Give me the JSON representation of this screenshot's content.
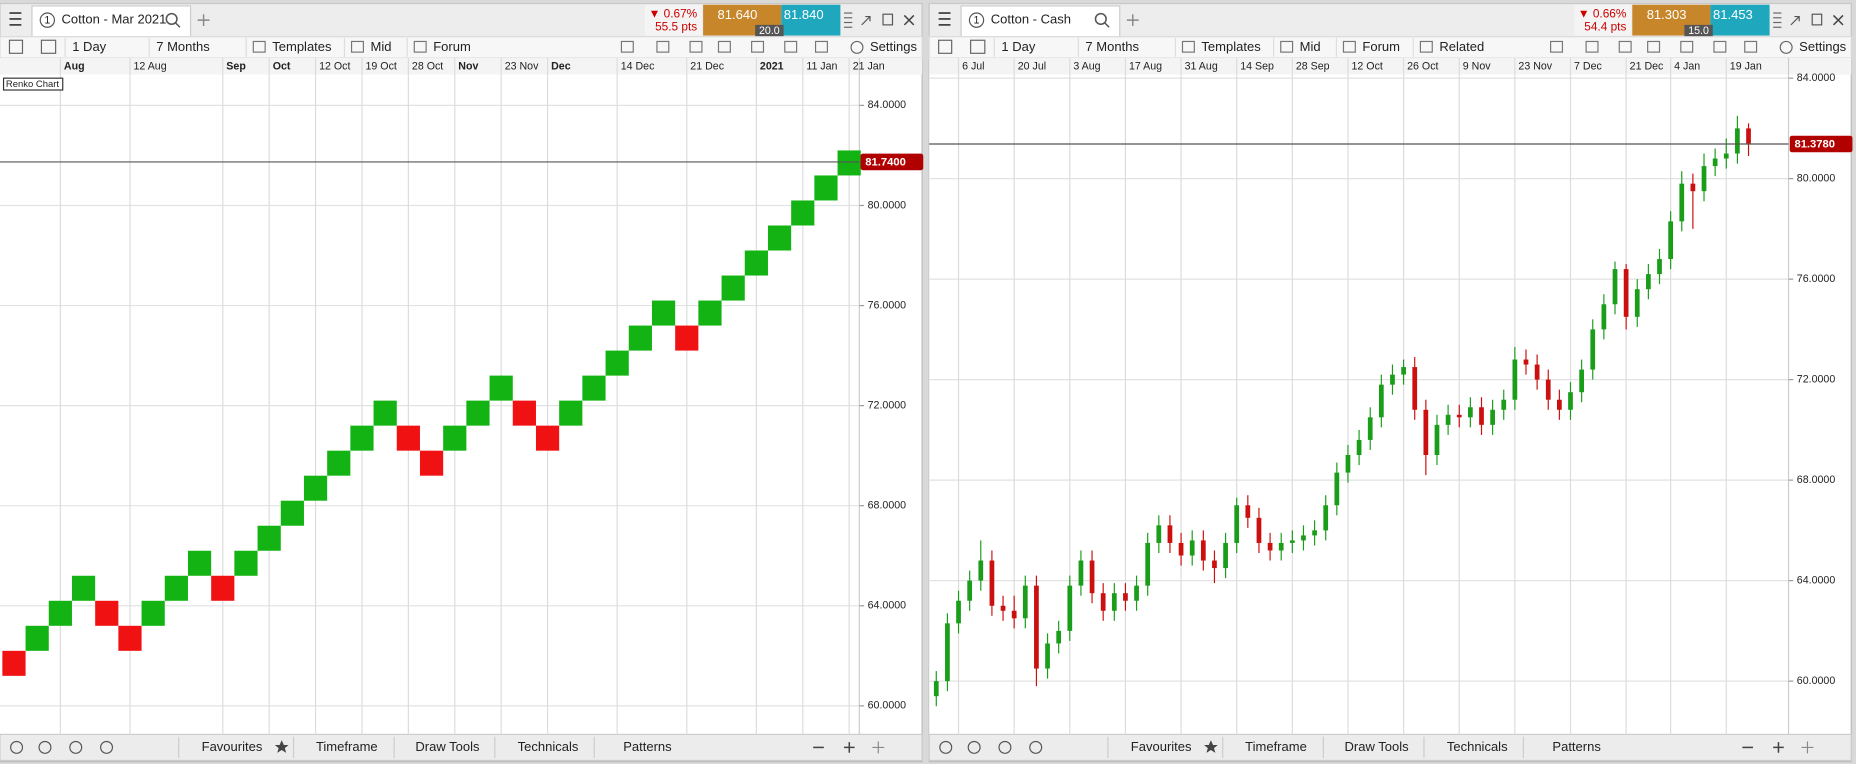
{
  "panels": [
    {
      "tab": {
        "number": "1",
        "title": "Cotton - Mar 2021"
      },
      "quote": {
        "change": "▼ 0.67%",
        "points": "55.5 pts",
        "bid": "81.640",
        "ask": "81.840",
        "spread": "20.0"
      },
      "toolbar": [
        "1 Day",
        "7 Months",
        "Templates",
        "Mid",
        "Forum"
      ],
      "settings": "Settings",
      "bottom_bar": [
        "Favourites",
        "Timeframe",
        "Draw Tools",
        "Technicals",
        "Patterns"
      ]
    },
    {
      "tab": {
        "number": "1",
        "title": "Cotton - Cash"
      },
      "quote": {
        "change": "▼ 0.66%",
        "points": "54.4 pts",
        "bid": "81.303",
        "ask": "81.453",
        "spread": "15.0"
      },
      "toolbar": [
        "1 Day",
        "7 Months",
        "Templates",
        "Mid",
        "Forum",
        "Related"
      ],
      "settings": "Settings",
      "bottom_bar": [
        "Favourites",
        "Timeframe",
        "Draw Tools",
        "Technicals",
        "Patterns"
      ]
    }
  ],
  "chart_data": [
    {
      "type": "renko",
      "label": "Renko Chart",
      "categories": [
        null,
        null,
        "Aug",
        null,
        null,
        "12 Aug",
        null,
        null,
        null,
        "Sep",
        null,
        "Oct",
        null,
        "12 Oct",
        null,
        "19 Oct",
        null,
        "28 Oct",
        null,
        "Nov",
        null,
        "23 Nov",
        null,
        "Dec",
        null,
        null,
        "14 Dec",
        null,
        null,
        "21 Dec",
        null,
        null,
        "2021",
        null,
        "11 Jan",
        null,
        "21 Jan"
      ],
      "open": [
        62.2,
        62.2,
        63.2,
        64.2,
        64.2,
        63.2,
        63.2,
        64.2,
        65.2,
        65.2,
        65.2,
        66.2,
        67.2,
        68.2,
        69.2,
        70.2,
        71.2,
        71.2,
        70.2,
        70.2,
        71.2,
        72.2,
        72.2,
        71.2,
        71.2,
        72.2,
        73.2,
        74.2,
        75.2,
        75.2,
        75.2,
        76.2,
        77.2,
        78.2,
        79.2,
        80.2,
        81.2
      ],
      "close": [
        61.2,
        63.2,
        64.2,
        65.2,
        63.2,
        62.2,
        64.2,
        65.2,
        66.2,
        64.2,
        66.2,
        67.2,
        68.2,
        69.2,
        70.2,
        71.2,
        72.2,
        70.2,
        69.2,
        71.2,
        72.2,
        73.2,
        71.2,
        70.2,
        72.2,
        73.2,
        74.2,
        75.2,
        76.2,
        74.2,
        76.2,
        77.2,
        78.2,
        79.2,
        80.2,
        81.2,
        82.2
      ],
      "up_color": "#12b312",
      "down_color": "#f01212",
      "ylim": [
        58.86,
        85.23
      ],
      "yticks": [
        {
          "value": 60,
          "label": "60.0000"
        },
        {
          "value": 64,
          "label": "64.0000"
        },
        {
          "value": 68,
          "label": "68.0000"
        },
        {
          "value": 72,
          "label": "72.0000"
        },
        {
          "value": 76,
          "label": "76.0000"
        },
        {
          "value": 80,
          "label": "80.0000"
        },
        {
          "value": 84,
          "label": "84.0000"
        }
      ],
      "last_price": {
        "value": 81.74,
        "label": "81.7400"
      },
      "grid": true
    },
    {
      "type": "candlestick",
      "categories": [
        null,
        null,
        "6 Jul",
        null,
        null,
        null,
        null,
        "20 Jul",
        null,
        null,
        null,
        null,
        "3 Aug",
        null,
        null,
        null,
        null,
        "17 Aug",
        null,
        null,
        null,
        null,
        "31 Aug",
        null,
        null,
        null,
        null,
        "14 Sep",
        null,
        null,
        null,
        null,
        "28 Sep",
        null,
        null,
        null,
        null,
        "12 Oct",
        null,
        null,
        null,
        null,
        "26 Oct",
        null,
        null,
        null,
        null,
        "9 Nov",
        null,
        null,
        null,
        null,
        "23 Nov",
        null,
        null,
        null,
        null,
        "7 Dec",
        null,
        null,
        null,
        null,
        "21 Dec",
        null,
        null,
        null,
        "4 Jan",
        null,
        null,
        null,
        null,
        "19 Jan",
        null,
        null
      ],
      "open": [
        59.4,
        60.0,
        62.3,
        63.2,
        64.0,
        64.8,
        63.0,
        62.8,
        62.5,
        63.8,
        60.5,
        61.5,
        62.0,
        63.8,
        64.8,
        63.5,
        62.8,
        63.5,
        63.2,
        63.8,
        65.5,
        66.2,
        65.5,
        65.0,
        65.6,
        64.8,
        64.5,
        65.5,
        67.0,
        66.5,
        65.5,
        65.2,
        65.5,
        65.6,
        65.8,
        66.0,
        67.0,
        68.3,
        69.0,
        69.6,
        70.5,
        71.8,
        72.2,
        72.5,
        70.8,
        69.0,
        70.2,
        70.6,
        70.5,
        70.9,
        70.2,
        70.8,
        71.2,
        72.8,
        72.6,
        72.0,
        71.2,
        70.8,
        71.5,
        72.4,
        74.0,
        75.0,
        76.4,
        74.5,
        75.6,
        76.2,
        76.8,
        78.3,
        79.8,
        79.5,
        80.5,
        80.8,
        81.0,
        82.0
      ],
      "high": [
        60.4,
        62.7,
        63.6,
        64.4,
        65.6,
        65.2,
        63.4,
        63.4,
        64.2,
        64.2,
        61.9,
        62.4,
        64.2,
        65.2,
        65.2,
        63.9,
        63.9,
        63.9,
        64.2,
        65.9,
        66.6,
        66.6,
        65.9,
        66.0,
        66.0,
        65.2,
        65.9,
        67.3,
        67.4,
        66.9,
        65.9,
        65.9,
        66.0,
        66.2,
        66.4,
        67.4,
        68.7,
        69.4,
        70.0,
        70.9,
        72.2,
        72.6,
        72.8,
        72.9,
        71.2,
        70.6,
        71.0,
        71.0,
        71.3,
        71.3,
        71.2,
        71.6,
        73.3,
        73.2,
        73.0,
        72.4,
        71.6,
        71.9,
        72.8,
        74.4,
        75.4,
        76.7,
        76.6,
        76.0,
        76.6,
        77.2,
        78.7,
        80.3,
        80.2,
        81.0,
        81.2,
        81.6,
        82.5,
        82.2
      ],
      "low": [
        59.0,
        59.6,
        61.9,
        62.8,
        63.6,
        62.6,
        62.4,
        62.1,
        62.1,
        59.8,
        60.1,
        61.1,
        61.6,
        63.4,
        63.1,
        62.4,
        62.4,
        62.8,
        62.8,
        63.4,
        65.1,
        65.1,
        64.6,
        64.6,
        64.4,
        63.9,
        64.1,
        65.1,
        66.1,
        65.1,
        64.8,
        64.8,
        65.1,
        65.2,
        65.4,
        65.6,
        66.6,
        67.9,
        68.6,
        69.2,
        70.1,
        71.4,
        71.8,
        70.4,
        68.2,
        68.6,
        69.8,
        70.1,
        70.1,
        69.8,
        69.8,
        70.4,
        70.8,
        72.2,
        71.6,
        70.8,
        70.4,
        70.4,
        71.1,
        72.0,
        73.6,
        74.6,
        74.0,
        74.1,
        75.2,
        75.8,
        76.4,
        77.9,
        78.0,
        79.1,
        80.1,
        80.4,
        80.6,
        80.9
      ],
      "close": [
        60.0,
        62.3,
        63.2,
        64.0,
        64.8,
        63.0,
        62.8,
        62.5,
        63.8,
        60.5,
        61.5,
        62.0,
        63.8,
        64.8,
        63.5,
        62.8,
        63.5,
        63.2,
        63.8,
        65.5,
        66.2,
        65.5,
        65.0,
        65.6,
        64.8,
        64.5,
        65.5,
        67.0,
        66.5,
        65.5,
        65.2,
        65.5,
        65.6,
        65.8,
        66.0,
        67.0,
        68.3,
        69.0,
        69.6,
        70.5,
        71.8,
        72.2,
        72.5,
        70.8,
        69.0,
        70.2,
        70.6,
        70.5,
        70.9,
        70.2,
        70.8,
        71.2,
        72.8,
        72.6,
        72.0,
        71.2,
        70.8,
        71.5,
        72.4,
        74.0,
        75.0,
        76.4,
        74.5,
        75.6,
        76.2,
        76.8,
        78.3,
        79.8,
        79.5,
        80.5,
        80.8,
        81.0,
        82.0,
        81.4
      ],
      "up_color": "#1a9e1a",
      "down_color": "#cc1010",
      "ylim": [
        57.88,
        84.14
      ],
      "yticks": [
        {
          "value": 60,
          "label": "60.0000"
        },
        {
          "value": 64,
          "label": "64.0000"
        },
        {
          "value": 68,
          "label": "68.0000"
        },
        {
          "value": 72,
          "label": "72.0000"
        },
        {
          "value": 76,
          "label": "76.0000"
        },
        {
          "value": 80,
          "label": "80.0000"
        },
        {
          "value": 84,
          "label": "84.0000"
        }
      ],
      "last_price": {
        "value": 81.378,
        "label": "81.3780"
      },
      "grid": true
    }
  ]
}
